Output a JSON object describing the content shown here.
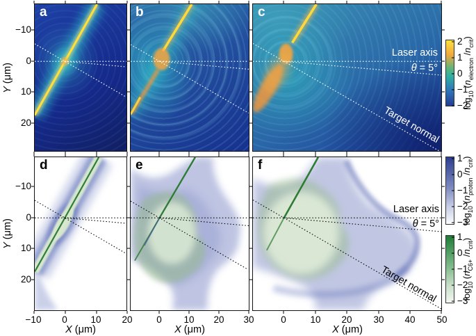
{
  "panels": {
    "a": "a",
    "b": "b",
    "c": "c",
    "d": "d",
    "e": "e",
    "f": "f"
  },
  "axes": {
    "y_label_var": "Y",
    "y_label_unit": " (μm)",
    "x_label_var": "X",
    "x_label_unit": " (μm)",
    "y_ticks": [
      "−10",
      "0",
      "10",
      "20"
    ],
    "x_ticks": {
      "d": [
        "−10",
        "0",
        "10",
        "20"
      ],
      "e": [
        "0",
        "10",
        "20",
        "30"
      ],
      "f": [
        "0",
        "10",
        "20",
        "30",
        "40",
        "50"
      ]
    }
  },
  "annotations": {
    "laser_axis": "Laser axis",
    "theta_var": "θ",
    "theta_rest": " = 5°",
    "target_normal": "Target normal"
  },
  "colorbars": {
    "electron": {
      "ticks": [
        "2",
        "1",
        "0",
        "−1",
        "−2"
      ],
      "label": {
        "fn": "log",
        "fnsub": "10",
        "open": " (",
        "var": "n",
        "varsub": "electron",
        "slash": " /",
        "var2": "n",
        "var2sub": "crit",
        "close": ")"
      }
    },
    "proton": {
      "ticks": [
        "1",
        "0",
        "−1",
        "−2",
        "−3"
      ],
      "label": {
        "fn": "log",
        "fnsub": "10",
        "open": " (",
        "var": "n",
        "varsub": "proton",
        "slash": " /",
        "var2": "n",
        "var2sub": "crit",
        "close": ")"
      }
    },
    "carbon": {
      "ticks": [
        "1",
        "0",
        "−1",
        "−2",
        "−3"
      ],
      "label": {
        "fn": "log",
        "fnsub": "10",
        "open": " (",
        "var": "n",
        "varsub": "C6+",
        "slash": " /",
        "var2": "n",
        "var2sub": "crit",
        "close": ")"
      }
    }
  },
  "colors": {
    "electron_scale": [
      "#fbe33c",
      "#f2a83e",
      "#2fb0a2",
      "#2f72ba",
      "#243d92"
    ],
    "proton_scale": [
      "#2c3d8f",
      "#fbfcfe"
    ],
    "carbon_scale": [
      "#1e7c35",
      "#f3f7f1"
    ],
    "laser_streak": "#ffdf3a",
    "top_annotation_text": "#ffffff",
    "bottom_annotation_text": "#000000"
  },
  "figure_geometry": {
    "laser_axis_y_um": 0,
    "theta_deg": 5,
    "target_normal_angle_deg_from_laser_axis": 30,
    "target_tilt_deg_from_x_axis": 60
  },
  "chart_data": [
    {
      "panel": "a",
      "type": "heatmap",
      "quantity": "log10(n_electron / n_crit)",
      "x_label": "X (μm)",
      "y_label": "Y (μm)",
      "x_range_um": [
        -10,
        20
      ],
      "y_range_um": [
        -18,
        27
      ],
      "color_range_log10": [
        -2,
        2
      ],
      "colormap": "dark blue → teal → green → orange → yellow",
      "features": [
        "intact thin foil target seen as bright overdense yellow line through the focus, tilted ~60° to the laser axis",
        "white dotted laser axis at Y = 0",
        "white dotted target-normal line ~30° below laser axis",
        "faint plasma ripples around the focus"
      ]
    },
    {
      "panel": "b",
      "type": "heatmap",
      "quantity": "log10(n_electron / n_crit)",
      "x_label": "X (μm)",
      "y_label": "Y (μm)",
      "x_range_um": [
        -10,
        30
      ],
      "y_range_um": [
        -18,
        27
      ],
      "color_range_log10": [
        -2,
        2
      ],
      "colormap": "dark blue → teal → green → orange → yellow",
      "features": [
        "foil partially expanded: bright streak remains above focus, orange underdense plasma blobs below focus",
        "broad teal plasma cloud on the left",
        "concentric wavefront ripples to the right of focus"
      ]
    },
    {
      "panel": "c",
      "type": "heatmap",
      "quantity": "log10(n_electron / n_crit)",
      "x_label": "X (μm)",
      "y_label": "Y (μm)",
      "x_range_um": [
        -10,
        50
      ],
      "y_range_um": [
        -18,
        27
      ],
      "color_range_log10": [
        -2,
        2
      ],
      "colormap": "dark blue → teal → green → orange → yellow",
      "features": [
        "later time: large teal plasma cloud, short yellow streak from top to focus, strong orange plume below-left of focus",
        "white labels: Laser axis, θ = 5°, Target normal"
      ]
    },
    {
      "panel": "d",
      "type": "heatmap",
      "quantities": [
        "log10(n_proton / n_crit)",
        "log10(n_C6+ / n_crit)"
      ],
      "x_label": "X (μm)",
      "y_label": "Y (μm)",
      "x_range_um": [
        -10,
        20
      ],
      "y_range_um": [
        -18,
        27
      ],
      "color_range_log10": [
        -3,
        1
      ],
      "colormaps": [
        "white → dark blue (protons)",
        "white → dark green (C6+)"
      ],
      "features": [
        "intact target: narrow diagonal band at ~60° with blue proton sheath around a light-green carbon layer and dark-green core line",
        "slight bulge of the band around the focus",
        "black dotted laser axis and target-normal lines"
      ]
    },
    {
      "panel": "e",
      "type": "heatmap",
      "quantities": [
        "log10(n_proton / n_crit)",
        "log10(n_C6+ / n_crit)"
      ],
      "x_label": "X (μm)",
      "y_label": "Y (μm)",
      "x_range_um": [
        -10,
        30
      ],
      "y_range_um": [
        -18,
        27
      ],
      "color_range_log10": [
        -3,
        1
      ],
      "colormaps": [
        "white → dark blue (protons)",
        "white → dark green (C6+)"
      ],
      "features": [
        "target exploding: blue proton plume expanding to X ≈ 22 μm around a green carbon core",
        "dark-green remnant of the foil line from top edge to focus"
      ]
    },
    {
      "panel": "f",
      "type": "heatmap",
      "quantities": [
        "log10(n_proton / n_crit)",
        "log10(n_C6+ / n_crit)"
      ],
      "x_label": "X (μm)",
      "y_label": "Y (μm)",
      "x_range_um": [
        -10,
        50
      ],
      "y_range_um": [
        -18,
        27
      ],
      "color_range_log10": [
        -3,
        1
      ],
      "colormaps": [
        "white → dark blue (protons)",
        "white → dark green (C6+)"
      ],
      "features": [
        "late time: large blue proton shell with rounded front bulging to X ≈ 40 μm near the laser axis / target normal",
        "broad light-green carbon cloud on the left with dark-green foil remnant",
        "black labels: Laser axis, θ = 5°, Target normal"
      ]
    }
  ]
}
